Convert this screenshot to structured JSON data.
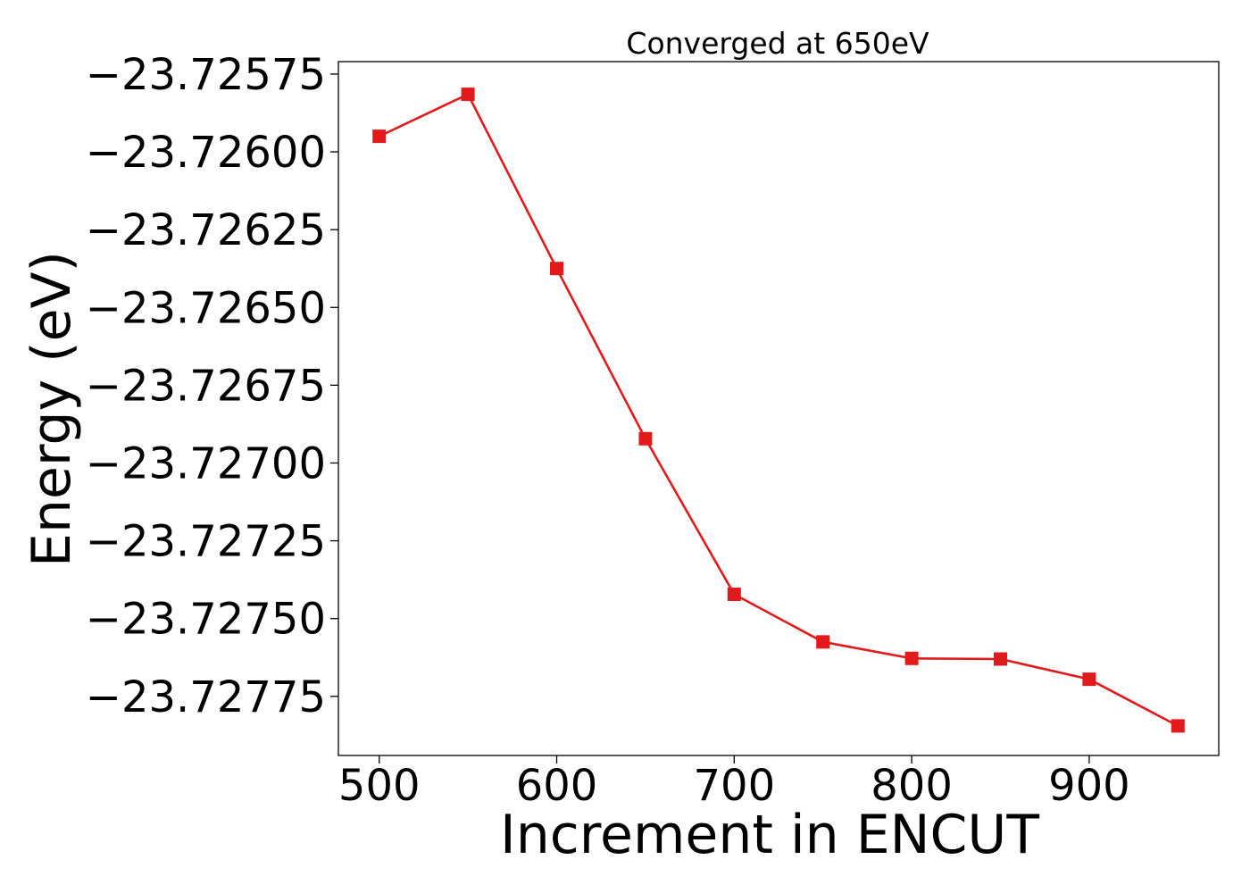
{
  "chart_data": {
    "type": "line",
    "title": "Converged at 650eV",
    "xlabel": "Increment in ENCUT",
    "ylabel": "Energy (eV)",
    "x": [
      500,
      550,
      600,
      650,
      700,
      750,
      800,
      850,
      900,
      950
    ],
    "series": [
      {
        "values": [
          -23.72595,
          -23.725815,
          -23.726375,
          -23.726922,
          -23.727422,
          -23.727575,
          -23.727628,
          -23.72763,
          -23.727695,
          -23.727845
        ],
        "color": "#e31a1c",
        "marker": "square"
      }
    ],
    "xlim": [
      477,
      973
    ],
    "ylim": [
      -23.72794,
      -23.72571
    ],
    "x_ticks": [
      500,
      600,
      700,
      800,
      900
    ],
    "x_tick_labels": [
      "500",
      "600",
      "700",
      "800",
      "900"
    ],
    "y_ticks": [
      -23.72575,
      -23.726,
      -23.72625,
      -23.7265,
      -23.72675,
      -23.727,
      -23.72725,
      -23.7275,
      -23.72775
    ],
    "y_tick_labels": [
      "−23.72575",
      "−23.72600",
      "−23.72625",
      "−23.72650",
      "−23.72675",
      "−23.72700",
      "−23.72725",
      "−23.72750",
      "−23.72775"
    ],
    "grid": false,
    "legend": "none"
  }
}
